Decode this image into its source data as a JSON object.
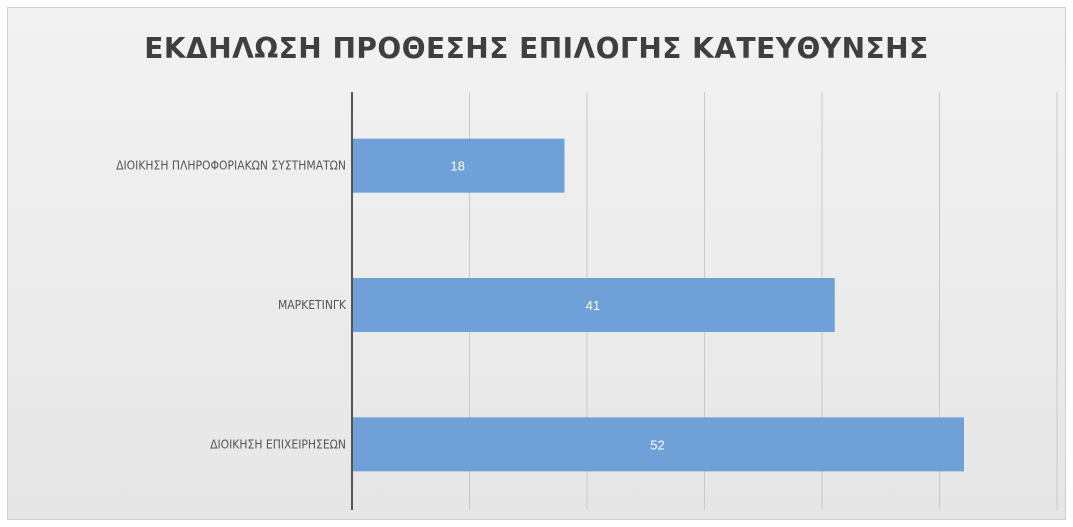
{
  "chart_data": {
    "type": "bar",
    "orientation": "horizontal",
    "title": "ΕΚΔΗΛΩΣΗ ΠΡΟΘΕΣΗΣ ΕΠΙΛΟΓΗΣ ΚΑΤΕΥΘΥΝΣΗΣ",
    "categories": [
      "ΔΙΟΙΚΗΣΗ ΠΛΗΡΟΦΟΡΙΑΚΩΝ ΣΥΣΤΗΜΑΤΩΝ",
      "ΜΑΡΚΕΤΙΝΓΚ",
      "ΔΙΟΙΚΗΣΗ ΕΠΙΧΕΙΡΗΣΕΩΝ"
    ],
    "values": [
      18,
      41,
      52
    ],
    "xlim": [
      0,
      60
    ],
    "grid": true,
    "bar_color": "#6fa0d8",
    "xlabel": "",
    "ylabel": ""
  }
}
